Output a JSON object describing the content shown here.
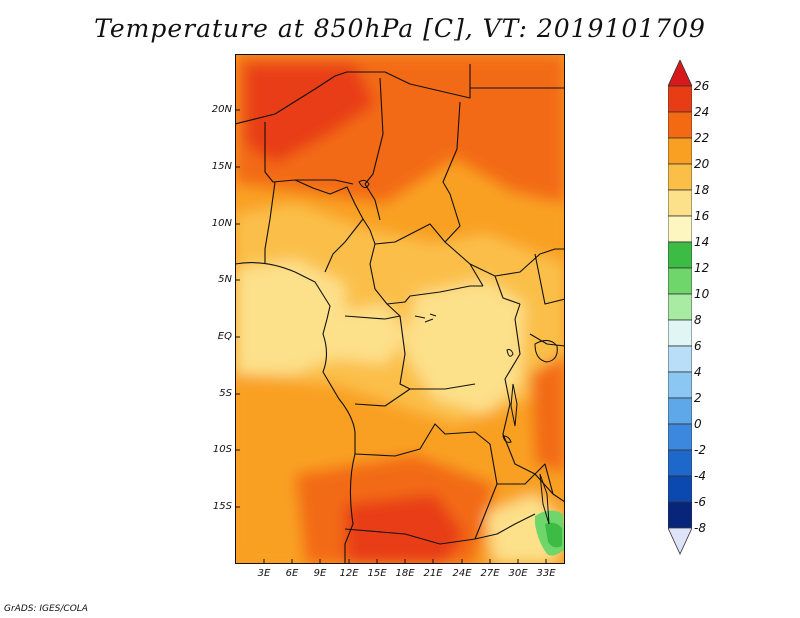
{
  "title": "Temperature at 850hPa [C], VT: 2019101709",
  "footer": "GrADS: IGES/COLA",
  "map": {
    "lat_labels": [
      "20N",
      "15N",
      "10N",
      "5N",
      "EQ",
      "5S",
      "10S",
      "15S"
    ],
    "lon_labels": [
      "3E",
      "6E",
      "9E",
      "12E",
      "15E",
      "18E",
      "21E",
      "24E",
      "27E",
      "30E",
      "33E"
    ]
  },
  "colorbar": {
    "labels": [
      "26",
      "24",
      "22",
      "20",
      "18",
      "16",
      "14",
      "12",
      "10",
      "8",
      "6",
      "4",
      "2",
      "0",
      "-2",
      "-4",
      "-6",
      "-8"
    ],
    "colors": {
      "c26p": "#d7191c",
      "c24": "#e83c14",
      "c22": "#f36a12",
      "c20": "#f9a022",
      "c18": "#fbbf48",
      "c16": "#fde08a",
      "c14": "#fef6c0",
      "c12": "#3cbc45",
      "c10": "#6fd66b",
      "c8": "#a8eba3",
      "c6": "#dff6f5",
      "c4": "#b8def8",
      "c2": "#8cc6f2",
      "c0": "#5ea8ea",
      "cm2": "#3b88de",
      "cm4": "#1e68cc",
      "cm6": "#0b48b0",
      "cm8": "#07257a",
      "cm8m": "#dfe3f7"
    }
  }
}
